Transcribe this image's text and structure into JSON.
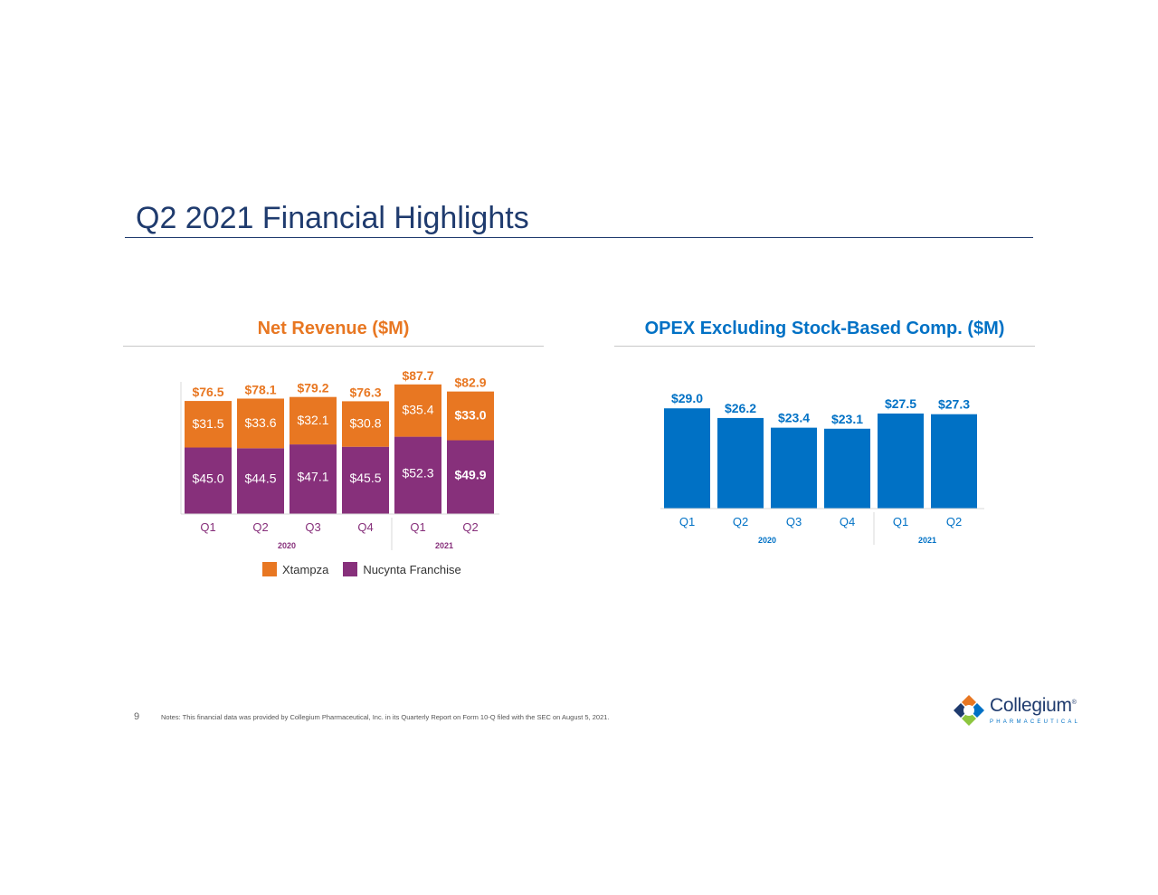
{
  "page": {
    "title": "Q2 2021 Financial Highlights",
    "page_number": "9",
    "notes": "Notes: This financial data was provided by Collegium Pharmaceutical, Inc. in its Quarterly Report on Form 10-Q filed with the SEC on August 5, 2021."
  },
  "logo": {
    "name": "Collegium",
    "trademark": "®",
    "subtitle": "PHARMACEUTICAL"
  },
  "colors": {
    "xtampza": "#e87722",
    "nucynta": "#87307b",
    "opex": "#0071c5",
    "title": "#1f3b6e"
  },
  "chart_data": [
    {
      "type": "bar",
      "stacked": true,
      "title": "Net Revenue ($M)",
      "categories": [
        "Q1",
        "Q2",
        "Q3",
        "Q4",
        "Q1",
        "Q2"
      ],
      "groups": [
        {
          "label": "2020",
          "count": 4
        },
        {
          "label": "2021",
          "count": 2
        }
      ],
      "series": [
        {
          "name": "Nucynta Franchise",
          "values": [
            45.0,
            44.5,
            47.1,
            45.5,
            52.3,
            49.9
          ],
          "labels": [
            "$45.0",
            "$44.5",
            "$47.1",
            "$45.5",
            "$52.3",
            "$49.9"
          ]
        },
        {
          "name": "Xtampza",
          "values": [
            31.5,
            33.6,
            32.1,
            30.8,
            35.4,
            33.0
          ],
          "labels": [
            "$31.5",
            "$33.6",
            "$32.1",
            "$30.8",
            "$35.4",
            "$33.0"
          ]
        }
      ],
      "totals": [
        76.5,
        78.1,
        79.2,
        76.3,
        87.7,
        82.9
      ],
      "total_labels": [
        "$76.5",
        "$78.1",
        "$79.2",
        "$76.3",
        "$87.7",
        "$82.9"
      ],
      "legend": [
        "Xtampza",
        "Nucynta Franchise"
      ],
      "legend_position": "bottom",
      "grid": false
    },
    {
      "type": "bar",
      "title": "OPEX Excluding Stock-Based Comp. ($M)",
      "categories": [
        "Q1",
        "Q2",
        "Q3",
        "Q4",
        "Q1",
        "Q2"
      ],
      "groups": [
        {
          "label": "2020",
          "count": 4
        },
        {
          "label": "2021",
          "count": 2
        }
      ],
      "values": [
        29.0,
        26.2,
        23.4,
        23.1,
        27.5,
        27.3
      ],
      "labels": [
        "$29.0",
        "$26.2",
        "$23.4",
        "$23.1",
        "$27.5",
        "$27.3"
      ],
      "grid": false
    }
  ]
}
